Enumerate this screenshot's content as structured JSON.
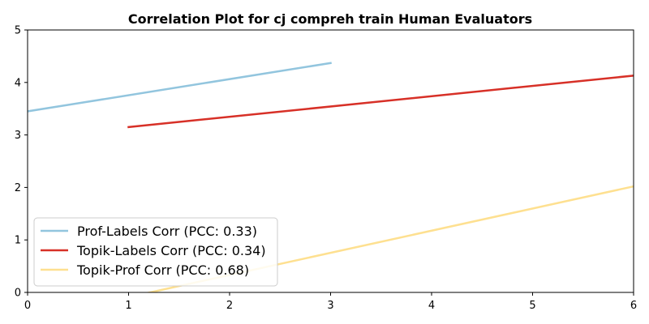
{
  "chart_data": {
    "type": "line",
    "title": "Correlation Plot for cj compreh train Human Evaluators",
    "xlabel": "",
    "ylabel": "",
    "xlim": [
      0,
      6
    ],
    "ylim": [
      0,
      5
    ],
    "xticks": [
      0,
      1,
      2,
      3,
      4,
      5,
      6
    ],
    "yticks": [
      0,
      1,
      2,
      3,
      4,
      5
    ],
    "grid": false,
    "legend_position": "lower-left",
    "series": [
      {
        "name": "Prof-Labels Corr (PCC: 0.33)",
        "color": "#92c5de",
        "x": [
          0,
          3
        ],
        "y": [
          3.45,
          4.37
        ]
      },
      {
        "name": "Topik-Labels Corr (PCC: 0.34)",
        "color": "#d73027",
        "x": [
          1,
          6
        ],
        "y": [
          3.15,
          4.13
        ]
      },
      {
        "name": "Topik-Prof Corr (PCC: 0.68)",
        "color": "#fee090",
        "x": [
          1,
          6
        ],
        "y": [
          -0.09,
          2.02
        ]
      }
    ]
  }
}
